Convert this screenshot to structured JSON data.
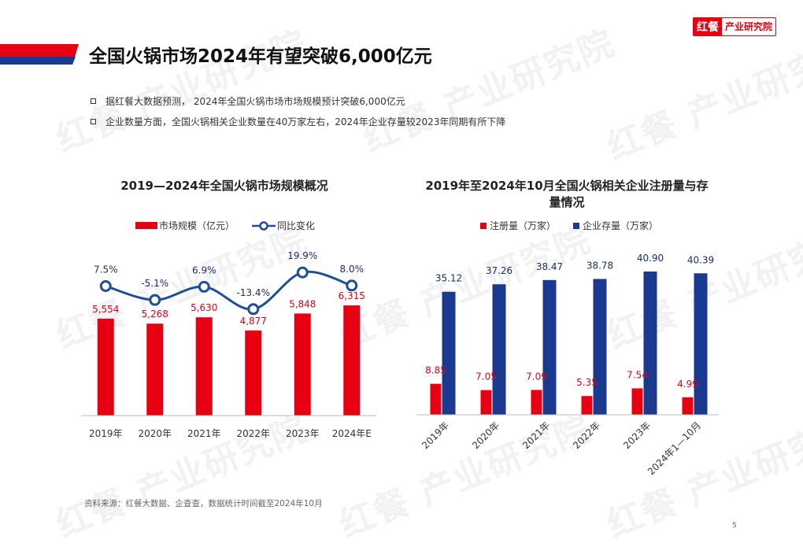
{
  "brand": {
    "logo_mark": "红餐",
    "logo_text": "产业研究院"
  },
  "page": {
    "title": "全国火锅市场2024年有望突破6,000亿元",
    "bullets": [
      "据红餐大数据预测， 2024年全国火锅市场市场规模预计突破6,000亿元",
      "企业数量方面，全国火锅相关企业数量在40万家左右，2024年企业存量较2023年同期有所下降"
    ],
    "source": "资料来源：红餐大数据、企查查，数据统计时间截至2024年10月",
    "page_number": "5"
  },
  "colors": {
    "red": "#e60012",
    "blue": "#1a3a8f",
    "line": "#1f4e9c"
  },
  "chart_data": [
    {
      "type": "bar",
      "title": "2019—2024年全国火锅市场规模概况",
      "categories": [
        "2019年",
        "2020年",
        "2021年",
        "2022年",
        "2023年",
        "2024年E"
      ],
      "series": [
        {
          "name": "市场规模（亿元）",
          "type": "bar",
          "values": [
            5554,
            5268,
            5630,
            4877,
            5848,
            6315
          ],
          "labels": [
            "5,554",
            "5,268",
            "5,630",
            "4,877",
            "5,848",
            "6,315"
          ]
        },
        {
          "name": "同比变化",
          "type": "line",
          "values": [
            7.5,
            -5.1,
            6.9,
            -13.4,
            19.9,
            8.0
          ],
          "labels": [
            "7.5%",
            "-5.1%",
            "6.9%",
            "-13.4%",
            "19.9%",
            "8.0%"
          ]
        }
      ]
    },
    {
      "type": "bar",
      "title": "2019年至2024年10月全国火锅相关企业注册量与存量情况",
      "categories": [
        "2019年",
        "2020年",
        "2021年",
        "2022年",
        "2023年",
        "2024年1—10月"
      ],
      "series": [
        {
          "name": "注册量（万家）",
          "values": [
            8.85,
            7.05,
            7.09,
            5.35,
            7.54,
            4.99
          ],
          "labels": [
            "8.85",
            "7.05",
            "7.09",
            "5.35",
            "7.54",
            "4.99"
          ]
        },
        {
          "name": "企业存量（万家）",
          "values": [
            35.12,
            37.26,
            38.47,
            38.78,
            40.9,
            40.39
          ],
          "labels": [
            "35.12",
            "37.26",
            "38.47",
            "38.78",
            "40.90",
            "40.39"
          ]
        }
      ]
    }
  ]
}
